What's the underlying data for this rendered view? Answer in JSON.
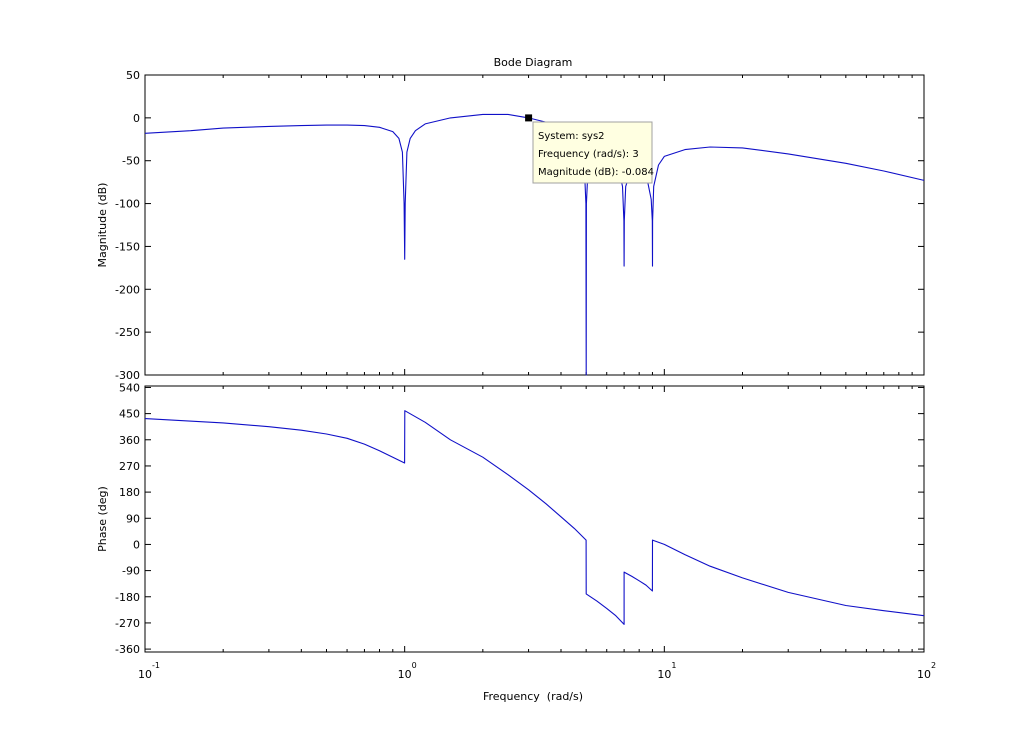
{
  "chart_data": {
    "type": "line",
    "title": "Bode Diagram",
    "xlabel": "Frequency  (rad/s)",
    "x_scale": "log",
    "xlim": [
      0.1,
      100
    ],
    "x_tick_base": "10",
    "x_tick_exponents": [
      "-1",
      "0",
      "1",
      "2"
    ],
    "grid": false,
    "color": "#1010c8",
    "panels": [
      {
        "id": "magnitude",
        "ylabel": "Magnitude (dB)",
        "ylim": [
          -300,
          50
        ],
        "yticks": [
          50,
          0,
          -50,
          -100,
          -150,
          -200,
          -250,
          -300
        ],
        "series": [
          {
            "x": [
              0.1,
              0.15,
              0.2,
              0.3,
              0.4,
              0.5,
              0.6,
              0.7,
              0.8,
              0.9,
              0.95,
              0.98,
              0.995,
              1.0,
              1.005,
              1.02,
              1.05,
              1.1,
              1.2,
              1.5,
              2.0,
              2.5,
              3.0,
              3.5,
              4.0,
              4.5,
              4.9,
              4.99,
              5.0,
              5.01,
              5.1,
              5.5,
              6.0,
              6.5,
              6.9,
              6.99,
              7.0,
              7.01,
              7.1,
              7.5,
              8.0,
              8.5,
              8.9,
              8.99,
              9.0,
              9.01,
              9.1,
              9.5,
              10,
              12,
              15,
              20,
              30,
              50,
              70,
              100
            ],
            "y": [
              -18,
              -15,
              -12,
              -10,
              -9,
              -8.5,
              -8.5,
              -9,
              -11,
              -16,
              -24,
              -40,
              -100,
              -165,
              -100,
              -40,
              -24,
              -15,
              -7,
              0,
              4,
              4,
              -0.084,
              -5,
              -12,
              -24,
              -45,
              -100,
              -300,
              -100,
              -50,
              -33,
              -32,
              -45,
              -80,
              -120,
              -173,
              -120,
              -80,
              -58,
              -52,
              -65,
              -95,
              -120,
              -173,
              -120,
              -80,
              -55,
              -45,
              -37,
              -34,
              -35,
              -42,
              -53,
              -62,
              -73
            ]
          }
        ]
      },
      {
        "id": "phase",
        "ylabel": "Phase (deg)",
        "ylim": [
          -370,
          545
        ],
        "yticks": [
          540,
          450,
          360,
          270,
          180,
          90,
          0,
          -90,
          -180,
          -270,
          -360
        ],
        "series": [
          {
            "x": [
              0.1,
              0.2,
              0.3,
              0.4,
              0.5,
              0.6,
              0.7,
              0.8,
              0.9,
              0.999,
              1.001,
              1.2,
              1.5,
              2.0,
              2.5,
              3.0,
              3.5,
              4.0,
              4.5,
              4.999,
              5.001,
              5.5,
              6.0,
              6.5,
              6.999,
              7.001,
              7.5,
              8.0,
              8.5,
              8.999,
              9.001,
              10,
              12,
              15,
              20,
              30,
              50,
              70,
              100
            ],
            "y": [
              433,
              418,
              405,
              393,
              380,
              365,
              345,
              322,
              300,
              280,
              460,
              420,
              360,
              300,
              240,
              188,
              140,
              95,
              55,
              15,
              -170,
              -195,
              -220,
              -245,
              -275,
              -95,
              -110,
              -125,
              -140,
              -160,
              15,
              0,
              -35,
              -75,
              -115,
              -165,
              -210,
              -228,
              -245
            ]
          }
        ]
      }
    ],
    "datatip": {
      "panel": "magnitude",
      "x": 3,
      "y": -0.084,
      "lines": [
        "System: sys2",
        "Frequency (rad/s): 3",
        "Magnitude (dB): -0.084"
      ]
    }
  }
}
